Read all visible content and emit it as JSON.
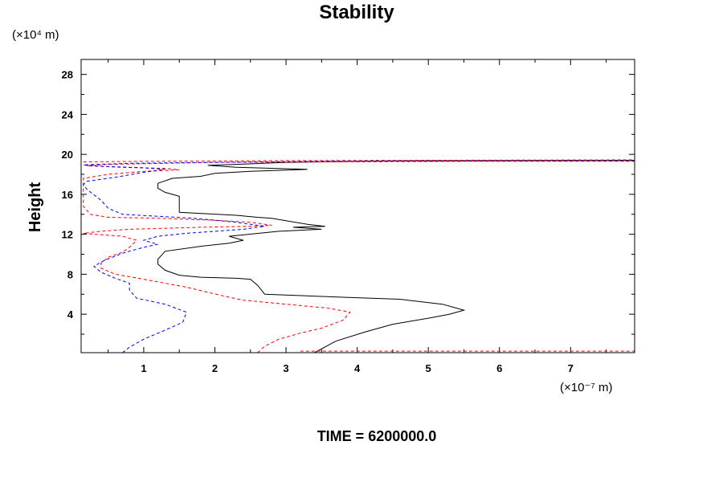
{
  "chart_data": {
    "type": "line",
    "title": "Stability",
    "ylabel": "Height",
    "xlabel": "",
    "y_unit_label": "(×10⁴ m)",
    "x_unit_label": "(×10⁻⁷ m)",
    "xlim": [
      0.12,
      7.9
    ],
    "ylim": [
      0.15,
      29.5
    ],
    "x_ticks": [
      1,
      2,
      3,
      4,
      5,
      6,
      7
    ],
    "y_ticks": [
      4,
      8,
      12,
      16,
      20,
      24,
      28
    ],
    "x_tick_labels": [
      "1",
      "2",
      "3",
      "4",
      "5",
      "6",
      "7"
    ],
    "y_tick_labels": [
      "4",
      "8",
      "12",
      "16",
      "20",
      "24",
      "28"
    ],
    "footer": "TIME = 6200000.0",
    "series": [
      {
        "name": "black-solid",
        "color": "#000000",
        "dash": "solid",
        "points": [
          [
            3.4,
            0.15
          ],
          [
            3.7,
            1.3
          ],
          [
            4.1,
            2.2
          ],
          [
            4.5,
            3.0
          ],
          [
            5.0,
            3.6
          ],
          [
            5.3,
            4.0
          ],
          [
            5.5,
            4.4
          ],
          [
            5.2,
            5.0
          ],
          [
            4.6,
            5.5
          ],
          [
            3.8,
            5.7
          ],
          [
            2.7,
            6.0
          ],
          [
            2.6,
            6.9
          ],
          [
            2.5,
            7.5
          ],
          [
            2.3,
            7.6
          ],
          [
            1.8,
            7.7
          ],
          [
            1.5,
            7.9
          ],
          [
            1.3,
            8.4
          ],
          [
            1.2,
            9.0
          ],
          [
            1.2,
            9.5
          ],
          [
            1.3,
            10.3
          ],
          [
            1.8,
            10.8
          ],
          [
            2.2,
            11.1
          ],
          [
            2.4,
            11.4
          ],
          [
            2.2,
            11.8
          ],
          [
            2.9,
            12.3
          ],
          [
            3.5,
            12.5
          ],
          [
            3.1,
            12.7
          ],
          [
            3.55,
            12.8
          ],
          [
            3.3,
            13.0
          ],
          [
            2.8,
            13.6
          ],
          [
            2.6,
            13.7
          ],
          [
            2.3,
            13.9
          ],
          [
            1.5,
            14.2
          ],
          [
            1.5,
            15.0
          ],
          [
            1.5,
            15.8
          ],
          [
            1.3,
            16.2
          ],
          [
            1.2,
            16.6
          ],
          [
            1.2,
            17.1
          ],
          [
            1.4,
            17.6
          ],
          [
            1.8,
            17.8
          ],
          [
            2.0,
            18.1
          ],
          [
            2.5,
            18.3
          ],
          [
            3.3,
            18.5
          ],
          [
            2.3,
            18.7
          ],
          [
            1.9,
            18.9
          ],
          [
            2.3,
            19.0
          ],
          [
            3.0,
            19.2
          ],
          [
            4.5,
            19.35
          ],
          [
            7.9,
            19.4
          ]
        ]
      },
      {
        "name": "red-dashed-inner",
        "color": "#ff0000",
        "dash": "dashed",
        "points": [
          [
            2.6,
            0.15
          ],
          [
            2.7,
            0.8
          ],
          [
            2.9,
            1.5
          ],
          [
            3.2,
            2.1
          ],
          [
            3.5,
            2.6
          ],
          [
            3.8,
            3.4
          ],
          [
            3.9,
            4.2
          ],
          [
            3.6,
            4.6
          ],
          [
            3.0,
            5.0
          ],
          [
            2.4,
            5.4
          ],
          [
            2.2,
            5.7
          ],
          [
            1.9,
            6.2
          ],
          [
            1.6,
            6.7
          ],
          [
            1.0,
            7.5
          ],
          [
            0.6,
            8.0
          ],
          [
            0.4,
            8.6
          ],
          [
            0.4,
            9.1
          ],
          [
            0.5,
            9.7
          ],
          [
            0.7,
            10.2
          ],
          [
            0.8,
            10.7
          ],
          [
            0.9,
            11.4
          ],
          [
            0.7,
            11.8
          ],
          [
            0.3,
            12.0
          ],
          [
            0.15,
            12.1
          ],
          [
            0.4,
            12.3
          ],
          [
            0.8,
            12.5
          ],
          [
            1.8,
            12.7
          ],
          [
            2.5,
            12.8
          ],
          [
            2.8,
            12.9
          ],
          [
            2.5,
            13.2
          ],
          [
            2.0,
            13.4
          ],
          [
            1.2,
            13.6
          ],
          [
            0.5,
            13.7
          ],
          [
            0.25,
            14.0
          ],
          [
            0.15,
            14.8
          ],
          [
            0.15,
            15.6
          ],
          [
            0.15,
            17.0
          ],
          [
            0.15,
            17.6
          ],
          [
            0.5,
            18.0
          ],
          [
            1.0,
            18.3
          ],
          [
            1.5,
            18.45
          ],
          [
            1.3,
            18.6
          ],
          [
            0.7,
            18.7
          ],
          [
            0.2,
            18.85
          ],
          [
            0.5,
            19.0
          ],
          [
            2.0,
            19.2
          ],
          [
            5.5,
            19.3
          ],
          [
            7.9,
            19.3
          ]
        ]
      },
      {
        "name": "blue-dashed",
        "color": "#0000ff",
        "dash": "dashed",
        "points": [
          [
            0.7,
            0.15
          ],
          [
            0.8,
            0.7
          ],
          [
            1.0,
            1.5
          ],
          [
            1.3,
            2.4
          ],
          [
            1.55,
            3.2
          ],
          [
            1.6,
            4.2
          ],
          [
            1.3,
            5.0
          ],
          [
            0.9,
            5.6
          ],
          [
            0.8,
            6.4
          ],
          [
            0.8,
            7.1
          ],
          [
            0.6,
            7.6
          ],
          [
            0.4,
            8.2
          ],
          [
            0.3,
            8.8
          ],
          [
            0.45,
            9.4
          ],
          [
            0.7,
            10.1
          ],
          [
            1.0,
            10.7
          ],
          [
            1.2,
            11.0
          ],
          [
            1.0,
            11.4
          ],
          [
            1.2,
            11.8
          ],
          [
            1.6,
            12.1
          ],
          [
            2.0,
            12.3
          ],
          [
            2.4,
            12.5
          ],
          [
            2.7,
            12.8
          ],
          [
            2.3,
            13.2
          ],
          [
            1.7,
            13.6
          ],
          [
            0.7,
            14.0
          ],
          [
            0.5,
            14.6
          ],
          [
            0.4,
            15.4
          ],
          [
            0.2,
            16.5
          ],
          [
            0.15,
            17.0
          ],
          [
            0.2,
            17.3
          ],
          [
            0.6,
            17.7
          ],
          [
            1.0,
            18.2
          ],
          [
            1.3,
            18.5
          ],
          [
            1.0,
            18.65
          ],
          [
            0.4,
            18.8
          ],
          [
            0.15,
            18.95
          ],
          [
            0.8,
            19.1
          ],
          [
            2.0,
            19.2
          ],
          [
            3.5,
            19.3
          ],
          [
            7.9,
            19.35
          ]
        ]
      },
      {
        "name": "red-dashed-upper",
        "color": "#ff0000",
        "dash": "dashed",
        "points": [
          [
            0.15,
            19.25
          ],
          [
            1.0,
            19.3
          ],
          [
            3.0,
            19.38
          ],
          [
            7.9,
            19.45
          ]
        ]
      },
      {
        "name": "red-dashed-floor",
        "color": "#ff0000",
        "dash": "dashed",
        "points": [
          [
            3.2,
            0.3
          ],
          [
            7.9,
            0.3
          ]
        ]
      }
    ]
  }
}
